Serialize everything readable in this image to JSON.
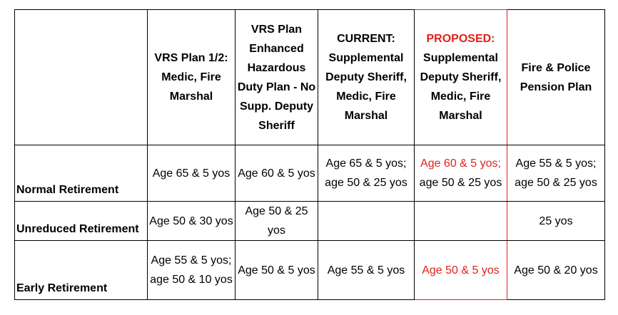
{
  "table": {
    "columns": [
      "",
      "VRS Plan 1/2: Medic, Fire Marshal",
      "VRS Plan Enhanced Hazardous Duty Plan - No Supp. Deputy Sheriff",
      "CURRENT: Supplemental Deputy Sheriff, Medic, Fire Marshal",
      "PROPOSED:",
      "Supplemental Deputy Sheriff, Medic, Fire Marshal",
      "Fire & Police Pension Plan"
    ],
    "rows": [
      {
        "label": "Normal Retirement",
        "cells": [
          "Age 65 & 5 yos",
          "Age 60 & 5 yos",
          "Age 65 & 5 yos; age 50 & 25 yos",
          "Age 60 & 5 yos;",
          "age 50 & 25 yos",
          "Age 55 & 5 yos; age 50 & 25 yos"
        ]
      },
      {
        "label": "Unreduced Retirement",
        "cells": [
          "Age 50 & 30 yos",
          "Age 50 & 25 yos",
          "",
          "",
          "",
          "25 yos"
        ]
      },
      {
        "label": "Early Retirement",
        "cells": [
          "Age 55 & 5 yos; age 50 & 10 yos",
          "Age 50 & 5 yos",
          "Age 55 & 5 yos",
          "Age 50 & 5 yos",
          "",
          "Age 50 & 20 yos"
        ]
      }
    ]
  }
}
